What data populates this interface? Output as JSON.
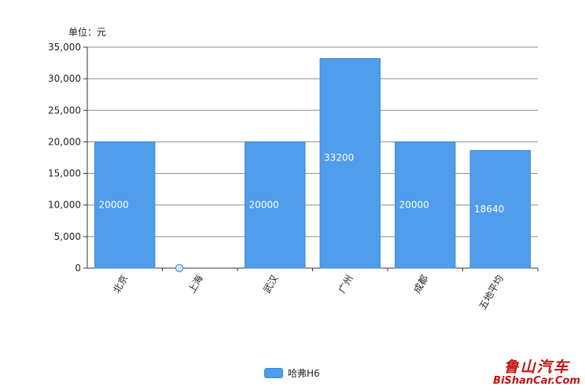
{
  "unit_label": "单位：元",
  "legend": {
    "label": "哈弗H6",
    "color": "#4f9deb"
  },
  "watermark": {
    "cn": "鲁山汽车",
    "en": "BiShanCar.Com"
  },
  "chart_data": {
    "type": "bar",
    "categories": [
      "北京",
      "上海",
      "武汉",
      "广州",
      "成都",
      "五地平均"
    ],
    "series": [
      {
        "name": "哈弗H6",
        "values": [
          20000,
          0,
          20000,
          33200,
          20000,
          18640
        ]
      }
    ],
    "data_labels": [
      "20000",
      "0",
      "20000",
      "33200",
      "20000",
      "18640"
    ],
    "yticks": [
      0,
      5000,
      10000,
      15000,
      20000,
      25000,
      30000,
      35000
    ],
    "ytick_labels": [
      "0",
      "5,000",
      "10,000",
      "15,000",
      "20,000",
      "25,000",
      "30,000",
      "35,000"
    ],
    "ylim": [
      0,
      35000
    ],
    "grid": true,
    "legend_position": "bottom-center",
    "bar_color": "#4f9deb",
    "bar_border_color": "#3f86d0"
  }
}
